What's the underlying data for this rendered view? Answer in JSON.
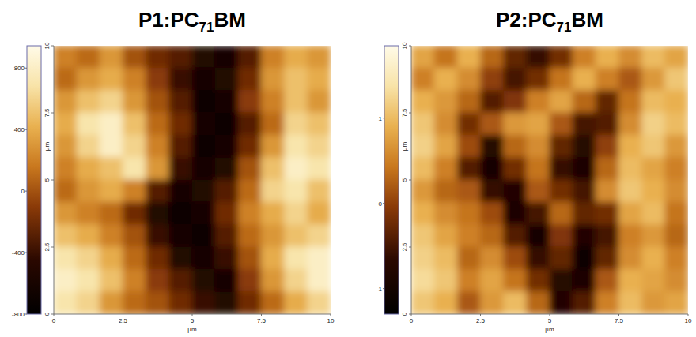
{
  "chart_data": [
    {
      "type": "heatmap",
      "title": "P1:PC71BM",
      "xlabel": "µm",
      "ylabel": "µm",
      "xlim": [
        0,
        10
      ],
      "ylim": [
        0,
        10
      ],
      "xticks": [
        0,
        2.5,
        5,
        7.5,
        10
      ],
      "yticks": [
        0,
        2.5,
        5,
        7.5,
        10
      ],
      "colorbar_range": [
        -800,
        945
      ],
      "colorbar_ticks": [
        -800,
        -400,
        0,
        400,
        800
      ],
      "cells": [
        [
          200,
          100,
          300,
          0,
          -200,
          -300,
          -500,
          -600,
          -300,
          200,
          400,
          300
        ],
        [
          100,
          300,
          400,
          200,
          -100,
          -400,
          -600,
          -500,
          -200,
          300,
          500,
          400
        ],
        [
          300,
          500,
          600,
          300,
          0,
          -300,
          -700,
          -600,
          -100,
          200,
          500,
          300
        ],
        [
          400,
          700,
          800,
          500,
          100,
          -200,
          -600,
          -700,
          -300,
          100,
          600,
          500
        ],
        [
          300,
          600,
          800,
          600,
          200,
          -300,
          -700,
          -600,
          -200,
          300,
          700,
          600
        ],
        [
          200,
          400,
          500,
          700,
          300,
          -400,
          -600,
          -500,
          0,
          500,
          800,
          700
        ],
        [
          100,
          300,
          400,
          200,
          -300,
          -600,
          -500,
          -300,
          100,
          600,
          700,
          500
        ],
        [
          300,
          200,
          100,
          -200,
          -500,
          -700,
          -600,
          -200,
          200,
          400,
          600,
          400
        ],
        [
          500,
          400,
          200,
          0,
          -400,
          -600,
          -700,
          -300,
          100,
          300,
          500,
          600
        ],
        [
          700,
          600,
          400,
          100,
          -200,
          -500,
          -600,
          -400,
          0,
          400,
          700,
          800
        ],
        [
          800,
          700,
          500,
          200,
          -100,
          -300,
          -500,
          -600,
          -100,
          300,
          600,
          800
        ],
        [
          700,
          600,
          300,
          100,
          0,
          -200,
          -400,
          -500,
          -200,
          100,
          400,
          600
        ]
      ]
    },
    {
      "type": "heatmap",
      "title": "P2:PC71BM",
      "xlabel": "µm",
      "ylabel": "µm",
      "xlim": [
        0,
        10
      ],
      "ylim": [
        0,
        10
      ],
      "xticks": [
        0,
        2.5,
        5,
        7.5,
        10
      ],
      "yticks": [
        0,
        2.5,
        5,
        7.5,
        10
      ],
      "colorbar_range": [
        -1.3,
        1.85
      ],
      "colorbar_ticks": [
        -1,
        0,
        1
      ],
      "cells": [
        [
          0.8,
          0.4,
          0.9,
          0.3,
          -0.3,
          -0.6,
          -0.2,
          0.5,
          0.9,
          0.6,
          1.0,
          0.8
        ],
        [
          0.5,
          0.9,
          0.6,
          0.0,
          -0.5,
          -0.2,
          0.4,
          0.9,
          0.5,
          0.2,
          0.7,
          1.1
        ],
        [
          0.9,
          0.7,
          0.3,
          -0.4,
          -0.1,
          0.5,
          0.8,
          0.3,
          -0.3,
          0.4,
          1.0,
          0.9
        ],
        [
          1.1,
          0.6,
          -0.2,
          0.2,
          0.7,
          0.8,
          0.2,
          -0.5,
          -0.4,
          0.6,
          1.2,
          1.0
        ],
        [
          1.2,
          0.8,
          0.1,
          -0.7,
          0.3,
          0.6,
          -0.3,
          -0.7,
          0.0,
          0.9,
          1.1,
          0.7
        ],
        [
          1.0,
          0.5,
          -0.4,
          -1.0,
          -0.2,
          0.4,
          -0.6,
          -0.9,
          0.3,
          1.0,
          0.8,
          0.5
        ],
        [
          0.7,
          0.3,
          0.2,
          -0.6,
          -0.8,
          0.2,
          -0.2,
          -0.5,
          0.6,
          1.1,
          0.9,
          0.6
        ],
        [
          0.9,
          0.6,
          0.4,
          0.1,
          -0.9,
          -0.5,
          0.3,
          -0.3,
          -0.2,
          0.8,
          1.0,
          0.4
        ],
        [
          1.1,
          0.8,
          0.5,
          0.3,
          -0.4,
          -1.0,
          -0.1,
          -0.8,
          -0.5,
          0.5,
          0.7,
          0.3
        ],
        [
          1.2,
          1.0,
          0.3,
          0.6,
          0.1,
          -0.6,
          -0.3,
          -1.1,
          -0.3,
          0.6,
          0.9,
          0.5
        ],
        [
          1.3,
          1.1,
          0.5,
          0.8,
          0.4,
          -0.2,
          -0.7,
          -0.9,
          0.2,
          0.9,
          0.8,
          0.6
        ],
        [
          1.1,
          0.9,
          0.2,
          0.7,
          1.0,
          0.3,
          -0.8,
          -0.4,
          0.5,
          1.0,
          0.7,
          0.8
        ]
      ]
    }
  ]
}
